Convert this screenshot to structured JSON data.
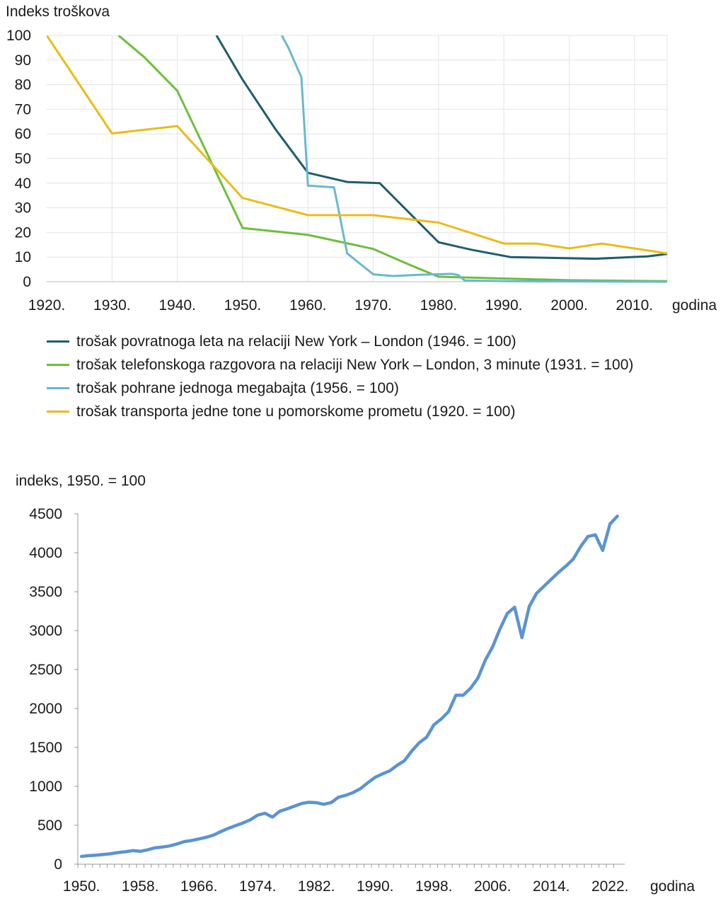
{
  "chart_data": [
    {
      "type": "line",
      "ylabel": "Indeks troškova",
      "xlabel": "godina",
      "xlim": [
        1920,
        2015
      ],
      "ylim": [
        0,
        100
      ],
      "x_ticks": [
        1920,
        1930,
        1940,
        1950,
        1960,
        1970,
        1980,
        1990,
        2000,
        2010
      ],
      "x_tick_labels": [
        "1920.",
        "1930.",
        "1940.",
        "1950.",
        "1960.",
        "1970.",
        "1980.",
        "1990.",
        "2000.",
        "2010."
      ],
      "y_ticks": [
        0,
        10,
        20,
        30,
        40,
        50,
        60,
        70,
        80,
        90,
        100
      ],
      "y_tick_labels": [
        "0",
        "10",
        "20",
        "30",
        "40",
        "50",
        "60",
        "70",
        "80",
        "90",
        "100"
      ],
      "grid": true,
      "legend_position": "bottom",
      "series": [
        {
          "name": "trošak povratnoga leta na relaciji New York – London (1946. = 100)",
          "color": "#1f5c6b",
          "points": [
            [
              1946,
              100
            ],
            [
              1950,
              82
            ],
            [
              1955,
              62
            ],
            [
              1960,
              44.2
            ],
            [
              1966,
              40.5
            ],
            [
              1971,
              40
            ],
            [
              1980,
              16
            ],
            [
              1985,
              13
            ],
            [
              1991,
              10
            ],
            [
              2004,
              9.3
            ],
            [
              2012,
              10.3
            ],
            [
              2015,
              11.3
            ]
          ]
        },
        {
          "name": "trošak telefonskoga razgovora na relaciji New York – London, 3 minute (1931. = 100)",
          "color": "#6cbf3a",
          "points": [
            [
              1931,
              100
            ],
            [
              1935,
              91
            ],
            [
              1940,
              77.5
            ],
            [
              1950,
              21.8
            ],
            [
              1960,
              19
            ],
            [
              1970,
              13.3
            ],
            [
              1975,
              7.5
            ],
            [
              1980,
              2
            ],
            [
              1990,
              1.3
            ],
            [
              2000,
              0.6
            ],
            [
              2015,
              0.2
            ]
          ]
        },
        {
          "name": "trošak pohrane jednoga megabajta (1956. = 100)",
          "color": "#69b8cf",
          "points": [
            [
              1956,
              100
            ],
            [
              1957,
              95
            ],
            [
              1959,
              83
            ],
            [
              1960,
              39
            ],
            [
              1964,
              38.3
            ],
            [
              1966,
              11.5
            ],
            [
              1970,
              3
            ],
            [
              1973,
              2.3
            ],
            [
              1977,
              2.8
            ],
            [
              1982,
              3.2
            ],
            [
              1983,
              2.7
            ],
            [
              1984,
              0.5
            ],
            [
              1990,
              0.2
            ],
            [
              2015,
              0
            ]
          ]
        },
        {
          "name": "trošak transporta jedne tone u pomorskome prometu (1920. = 100)",
          "color": "#e8bc1a",
          "points": [
            [
              1920,
              100
            ],
            [
              1930,
              60.2
            ],
            [
              1940,
              63.2
            ],
            [
              1950,
              34
            ],
            [
              1960,
              27
            ],
            [
              1970,
              27
            ],
            [
              1980,
              24
            ],
            [
              1990,
              15.5
            ],
            [
              1995,
              15.5
            ],
            [
              2000,
              13.5
            ],
            [
              2005,
              15.5
            ],
            [
              2010,
              13.5
            ],
            [
              2015,
              11.5
            ]
          ]
        }
      ]
    },
    {
      "type": "line",
      "ylabel": "indeks, 1950. = 100",
      "xlabel": "godina",
      "xlim": [
        1950,
        2023
      ],
      "ylim": [
        0,
        4500
      ],
      "x_ticks": [
        1950,
        1958,
        1966,
        1974,
        1982,
        1990,
        1998,
        2006,
        2014,
        2022
      ],
      "x_tick_labels": [
        "1950.",
        "1958.",
        "1966.",
        "1974.",
        "1982.",
        "1990.",
        "1998.",
        "2006.",
        "2014.",
        "2022."
      ],
      "y_ticks": [
        0,
        500,
        1000,
        1500,
        2000,
        2500,
        3000,
        3500,
        4000,
        4500
      ],
      "y_tick_labels": [
        "0",
        "500",
        "1000",
        "1500",
        "2000",
        "2500",
        "3000",
        "3500",
        "4000",
        "4500"
      ],
      "grid": false,
      "series": [
        {
          "name": "indeks",
          "color": "#5b93d3",
          "x": [
            1950,
            1951,
            1952,
            1953,
            1954,
            1955,
            1956,
            1957,
            1958,
            1959,
            1960,
            1961,
            1962,
            1963,
            1964,
            1965,
            1966,
            1967,
            1968,
            1969,
            1970,
            1971,
            1972,
            1973,
            1974,
            1975,
            1976,
            1977,
            1978,
            1979,
            1980,
            1981,
            1982,
            1983,
            1984,
            1985,
            1986,
            1987,
            1988,
            1989,
            1990,
            1991,
            1992,
            1993,
            1994,
            1995,
            1996,
            1997,
            1998,
            1999,
            2000,
            2001,
            2002,
            2003,
            2004,
            2005,
            2006,
            2007,
            2008,
            2009,
            2010,
            2011,
            2012,
            2013,
            2014,
            2015,
            2016,
            2017,
            2018,
            2019,
            2020,
            2021,
            2022,
            2023
          ],
          "values": [
            100,
            110,
            115,
            125,
            135,
            150,
            160,
            175,
            165,
            185,
            210,
            220,
            235,
            260,
            290,
            305,
            325,
            345,
            375,
            420,
            460,
            495,
            530,
            570,
            630,
            655,
            605,
            680,
            710,
            745,
            780,
            795,
            790,
            770,
            790,
            860,
            885,
            920,
            970,
            1045,
            1115,
            1160,
            1200,
            1270,
            1330,
            1455,
            1560,
            1630,
            1790,
            1865,
            1960,
            2170,
            2170,
            2260,
            2390,
            2620,
            2790,
            3020,
            3220,
            3300,
            2910,
            3310,
            3480,
            3570,
            3660,
            3750,
            3830,
            3920,
            4080,
            4210,
            4230,
            4030,
            4370,
            4470
          ]
        }
      ]
    }
  ]
}
